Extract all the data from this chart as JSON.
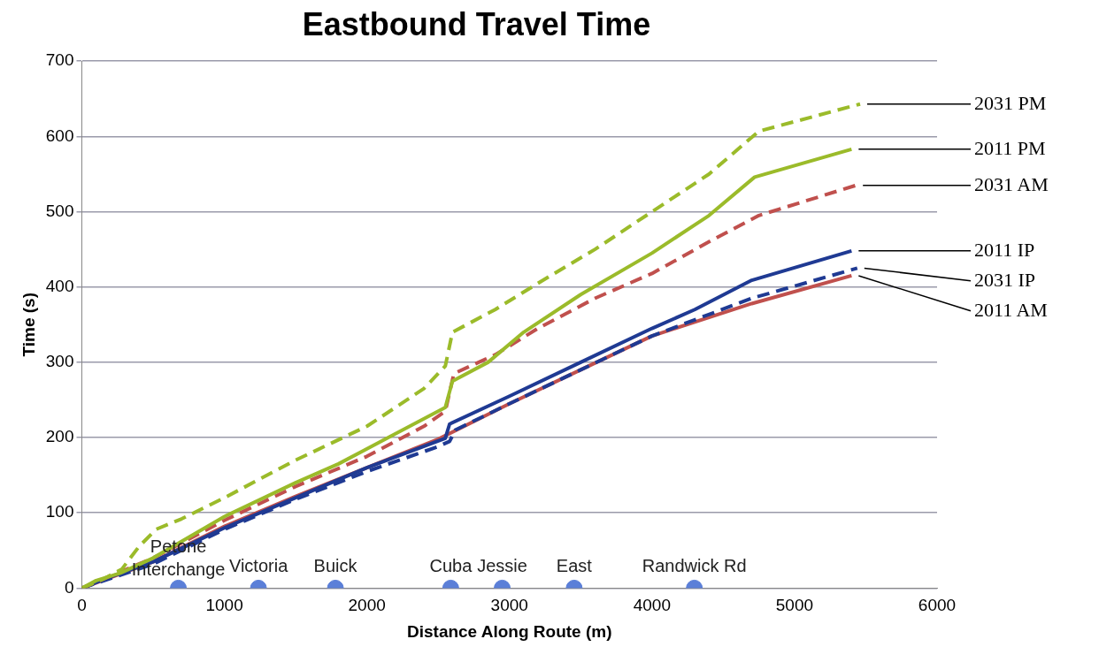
{
  "chart_data": {
    "type": "line",
    "title": "Eastbound Travel Time",
    "xlabel": "Distance Along Route (m)",
    "ylabel": "Time (s)",
    "xlim": [
      0,
      6000
    ],
    "xticks": [
      0,
      1000,
      2000,
      3000,
      4000,
      5000,
      6000
    ],
    "ylim": [
      0,
      700
    ],
    "yticks": [
      0,
      100,
      200,
      300,
      400,
      500,
      600,
      700
    ],
    "grid": "y",
    "legend": false,
    "marker": "none",
    "series": [
      {
        "name": "2031 PM",
        "color": "#9bbb2a",
        "line_style": "dashed",
        "x": [
          0,
          150,
          280,
          400,
          520,
          700,
          1000,
          1500,
          2000,
          2400,
          2550,
          2600,
          2900,
          3200,
          3600,
          4000,
          4400,
          4750,
          5460
        ],
        "values": [
          0,
          12,
          25,
          55,
          78,
          92,
          120,
          170,
          215,
          265,
          295,
          340,
          370,
          405,
          450,
          500,
          550,
          607,
          643
        ]
      },
      {
        "name": "2011 PM",
        "color": "#9bbb2a",
        "line_style": "solid",
        "x": [
          0,
          100,
          270,
          500,
          1000,
          1500,
          1800,
          2200,
          2400,
          2550,
          2600,
          2850,
          3100,
          3500,
          4000,
          4400,
          4720,
          5400
        ],
        "values": [
          0,
          10,
          20,
          40,
          95,
          140,
          165,
          205,
          225,
          240,
          275,
          300,
          340,
          390,
          445,
          495,
          546,
          583
        ]
      },
      {
        "name": "2031 AM",
        "color": "#c0504d",
        "line_style": "dashed",
        "x": [
          0,
          500,
          1000,
          1500,
          2000,
          2400,
          2550,
          2610,
          2900,
          3200,
          3600,
          4000,
          4400,
          4750,
          5430
        ],
        "values": [
          0,
          40,
          90,
          135,
          175,
          215,
          235,
          285,
          310,
          345,
          385,
          418,
          460,
          495,
          535
        ]
      },
      {
        "name": "2011 IP",
        "color": "#1f3a93",
        "line_style": "solid",
        "x": [
          0,
          200,
          500,
          1000,
          1500,
          2000,
          2550,
          2580,
          3000,
          3500,
          4000,
          4300,
          4700,
          5400
        ],
        "values": [
          0,
          15,
          35,
          80,
          120,
          160,
          199,
          218,
          255,
          300,
          345,
          370,
          409,
          448
        ]
      },
      {
        "name": "2031 IP",
        "color": "#1f3a93",
        "line_style": "dashed",
        "x": [
          0,
          500,
          1000,
          1500,
          2000,
          2500,
          2580,
          2620,
          3000,
          3500,
          4000,
          4700,
          5440
        ],
        "values": [
          0,
          32,
          78,
          118,
          155,
          188,
          195,
          210,
          245,
          290,
          335,
          385,
          425
        ]
      },
      {
        "name": "2011 AM",
        "color": "#c0504d",
        "line_style": "solid",
        "x": [
          0,
          500,
          1000,
          1500,
          2000,
          2500,
          3000,
          3500,
          4000,
          4700,
          5400
        ],
        "values": [
          0,
          35,
          82,
          122,
          160,
          198,
          245,
          290,
          335,
          378,
          415
        ]
      },
      {
        "type": "scatter",
        "color": "#5b7fd8",
        "marker": "circle",
        "x": [
          677,
          1239,
          1779,
          2588,
          2949,
          3454,
          4297
        ],
        "values": [
          0,
          0,
          0,
          0,
          0,
          0,
          0
        ]
      }
    ],
    "annotations": [
      {
        "text": "Petone Interchange",
        "x": 677,
        "y": 0
      },
      {
        "text": "Victoria",
        "x": 1239,
        "y": 0
      },
      {
        "text": "Buick",
        "x": 1779,
        "y": 0
      },
      {
        "text": "Cuba",
        "x": 2588,
        "y": 0
      },
      {
        "text": "Jessie",
        "x": 2949,
        "y": 0
      },
      {
        "text": "East",
        "x": 3454,
        "y": 0
      },
      {
        "text": "Randwick Rd",
        "x": 4297,
        "y": 0
      }
    ]
  }
}
